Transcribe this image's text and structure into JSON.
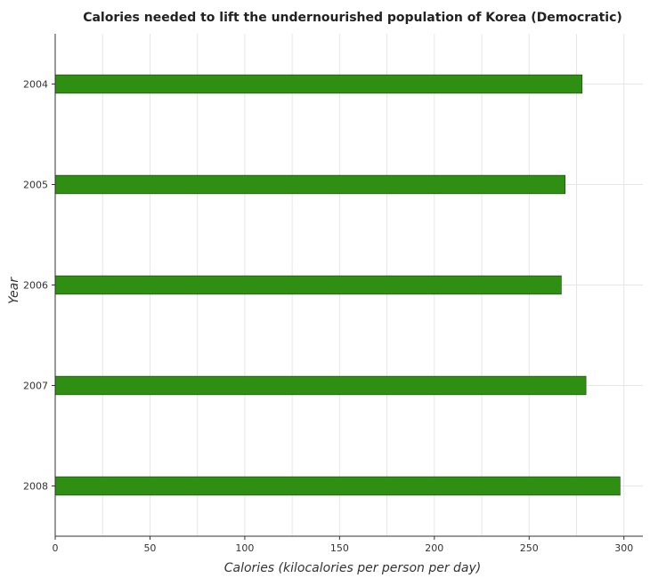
{
  "chart_data": {
    "type": "bar",
    "orientation": "horizontal",
    "title": "Calories needed to lift the undernourished population of Korea (Democratic)",
    "xlabel": "Calories (kilocalories per person per day)",
    "ylabel": "Year",
    "categories": [
      "2004",
      "2005",
      "2006",
      "2007",
      "2008"
    ],
    "values": [
      278,
      269,
      267,
      280,
      298
    ],
    "xlim": [
      0,
      310
    ],
    "xticks": [
      0,
      50,
      100,
      150,
      200,
      250,
      300
    ],
    "grid": true,
    "bar_color": "#2f8f12"
  }
}
